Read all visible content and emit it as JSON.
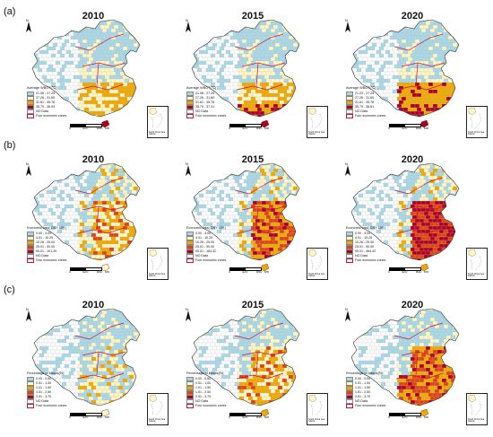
{
  "rows": [
    {
      "label": "(a)",
      "legend_title": "Average WBGT(℃)",
      "classes": [
        {
          "label": "21.08 - 27.25",
          "color": "#a9d8e6"
        },
        {
          "label": "27.26 - 31.60",
          "color": "#fff6c2"
        },
        {
          "label": "31.61 - 35.78",
          "color": "#f0a800"
        },
        {
          "label": "35.79 - 38.61",
          "color": "#b0001e"
        },
        {
          "label": "NO Data",
          "color": "#ffffff"
        },
        {
          "label": "Four economic zones",
          "color": "#ffffff"
        }
      ],
      "panels": [
        {
          "year": "2010",
          "legend_classes": [
            "21.08 - 27.25",
            "27.26 - 31.60",
            "31.61 - 35.78",
            "35.79 - 36.93",
            "NO Data",
            "Four economic zones"
          ],
          "pattern": "wbgt2010"
        },
        {
          "year": "2015",
          "legend_classes": [
            "21.08 - 27.25",
            "27.26 - 31.60",
            "31.61 - 35.78",
            "35.79 - 37.41",
            "NO Data",
            "Four economic zones"
          ],
          "pattern": "wbgt2015"
        },
        {
          "year": "2020",
          "legend_classes": [
            "21.23 - 27.25",
            "27.26 - 31.60",
            "31.61 - 35.78",
            "35.79 - 38.61",
            "NO Data",
            "Four economic zones"
          ],
          "pattern": "wbgt2020"
        }
      ]
    },
    {
      "label": "(b)",
      "legend_title": "Economic loss( CNY 10⁸ )",
      "classes": [
        {
          "label": "0.00 - 4.00",
          "color": "#a9d8e6"
        },
        {
          "label": "4.01 - 10.25",
          "color": "#fff6c2"
        },
        {
          "label": "10.26 - 25.00",
          "color": "#f0a800"
        },
        {
          "label": "25.01 - 90.00",
          "color": "#e0440e"
        },
        {
          "label": "90.01 - ...",
          "color": "#b0001e"
        },
        {
          "label": "NO Data",
          "color": "#ffffff"
        },
        {
          "label": "Four economic zones",
          "color": "#ffffff"
        }
      ],
      "panels": [
        {
          "year": "2010",
          "legend_classes": [
            "0.00 - 4.00",
            "4.01 - 10.25",
            "10.26 - 25.00",
            "25.01 - 90.00",
            "90.01 - 101.29",
            "NO Data",
            "Four economic zones"
          ],
          "pattern": "loss2010"
        },
        {
          "year": "2015",
          "legend_classes": [
            "0.00 - 4.00",
            "4.01 - 10.25",
            "10.26 - 25.00",
            "25.01 - 90.00",
            "90.01 - 164.42",
            "NO Data",
            "Four economic zones"
          ],
          "pattern": "loss2015"
        },
        {
          "year": "2020",
          "legend_classes": [
            "0.00 - 4.00",
            "4.01 - 10.25",
            "10.26 - 25.00",
            "25.01 - 90.00",
            "90.01 - 464.42",
            "NO Data",
            "Four economic zones"
          ],
          "pattern": "loss2020"
        }
      ]
    },
    {
      "label": "(c)",
      "legend_title": "Percentage of losses(%)",
      "classes": [
        {
          "label": "0.00 - 0.50",
          "color": "#a9d8e6"
        },
        {
          "label": "0.51 - 1.00",
          "color": "#fff6c2"
        },
        {
          "label": "1.01 - 1.50",
          "color": "#f0a800"
        },
        {
          "label": "1.51 - 2.50",
          "color": "#e0440e"
        },
        {
          "label": "2.51 - 3.70",
          "color": "#b0001e"
        },
        {
          "label": "NO Data",
          "color": "#ffffff"
        },
        {
          "label": "Four economic zones",
          "color": "#ffffff"
        }
      ],
      "panels": [
        {
          "year": "2010",
          "legend_classes": [
            "0.00 - 0.50",
            "0.51 - 1.00",
            "1.01 - 1.50",
            "1.51 - 2.50",
            "2.51 - 3.70",
            "NO Data",
            "Four economic zones"
          ],
          "pattern": "pct2010"
        },
        {
          "year": "2015",
          "legend_classes": [
            "0.00 - 0.50",
            "0.51 - 1.00",
            "1.01 - 1.50",
            "1.51 - 2.50",
            "2.51 - 3.70",
            "NO Data",
            "Four economic zones"
          ],
          "pattern": "pct2015"
        },
        {
          "year": "2020",
          "legend_classes": [
            "0.00 - 0.50",
            "0.51 - 1.00",
            "1.01 - 1.50",
            "1.51 - 2.50",
            "2.51 - 3.70",
            "NO Data",
            "Four economic zones"
          ],
          "pattern": "pct2020"
        }
      ]
    }
  ],
  "scale": {
    "ticks": [
      "0",
      "420",
      "840",
      "km"
    ]
  },
  "north_label": "N",
  "inset_label": "South China Sea Islands",
  "colors": {
    "outline": "#333333",
    "zone_border": "#d0103a",
    "blue": "#a9d8e6",
    "pale": "#fff6c2",
    "orange": "#f0a800",
    "redorange": "#e0440e",
    "darkred": "#b0001e",
    "nodata": "#ffffff"
  }
}
